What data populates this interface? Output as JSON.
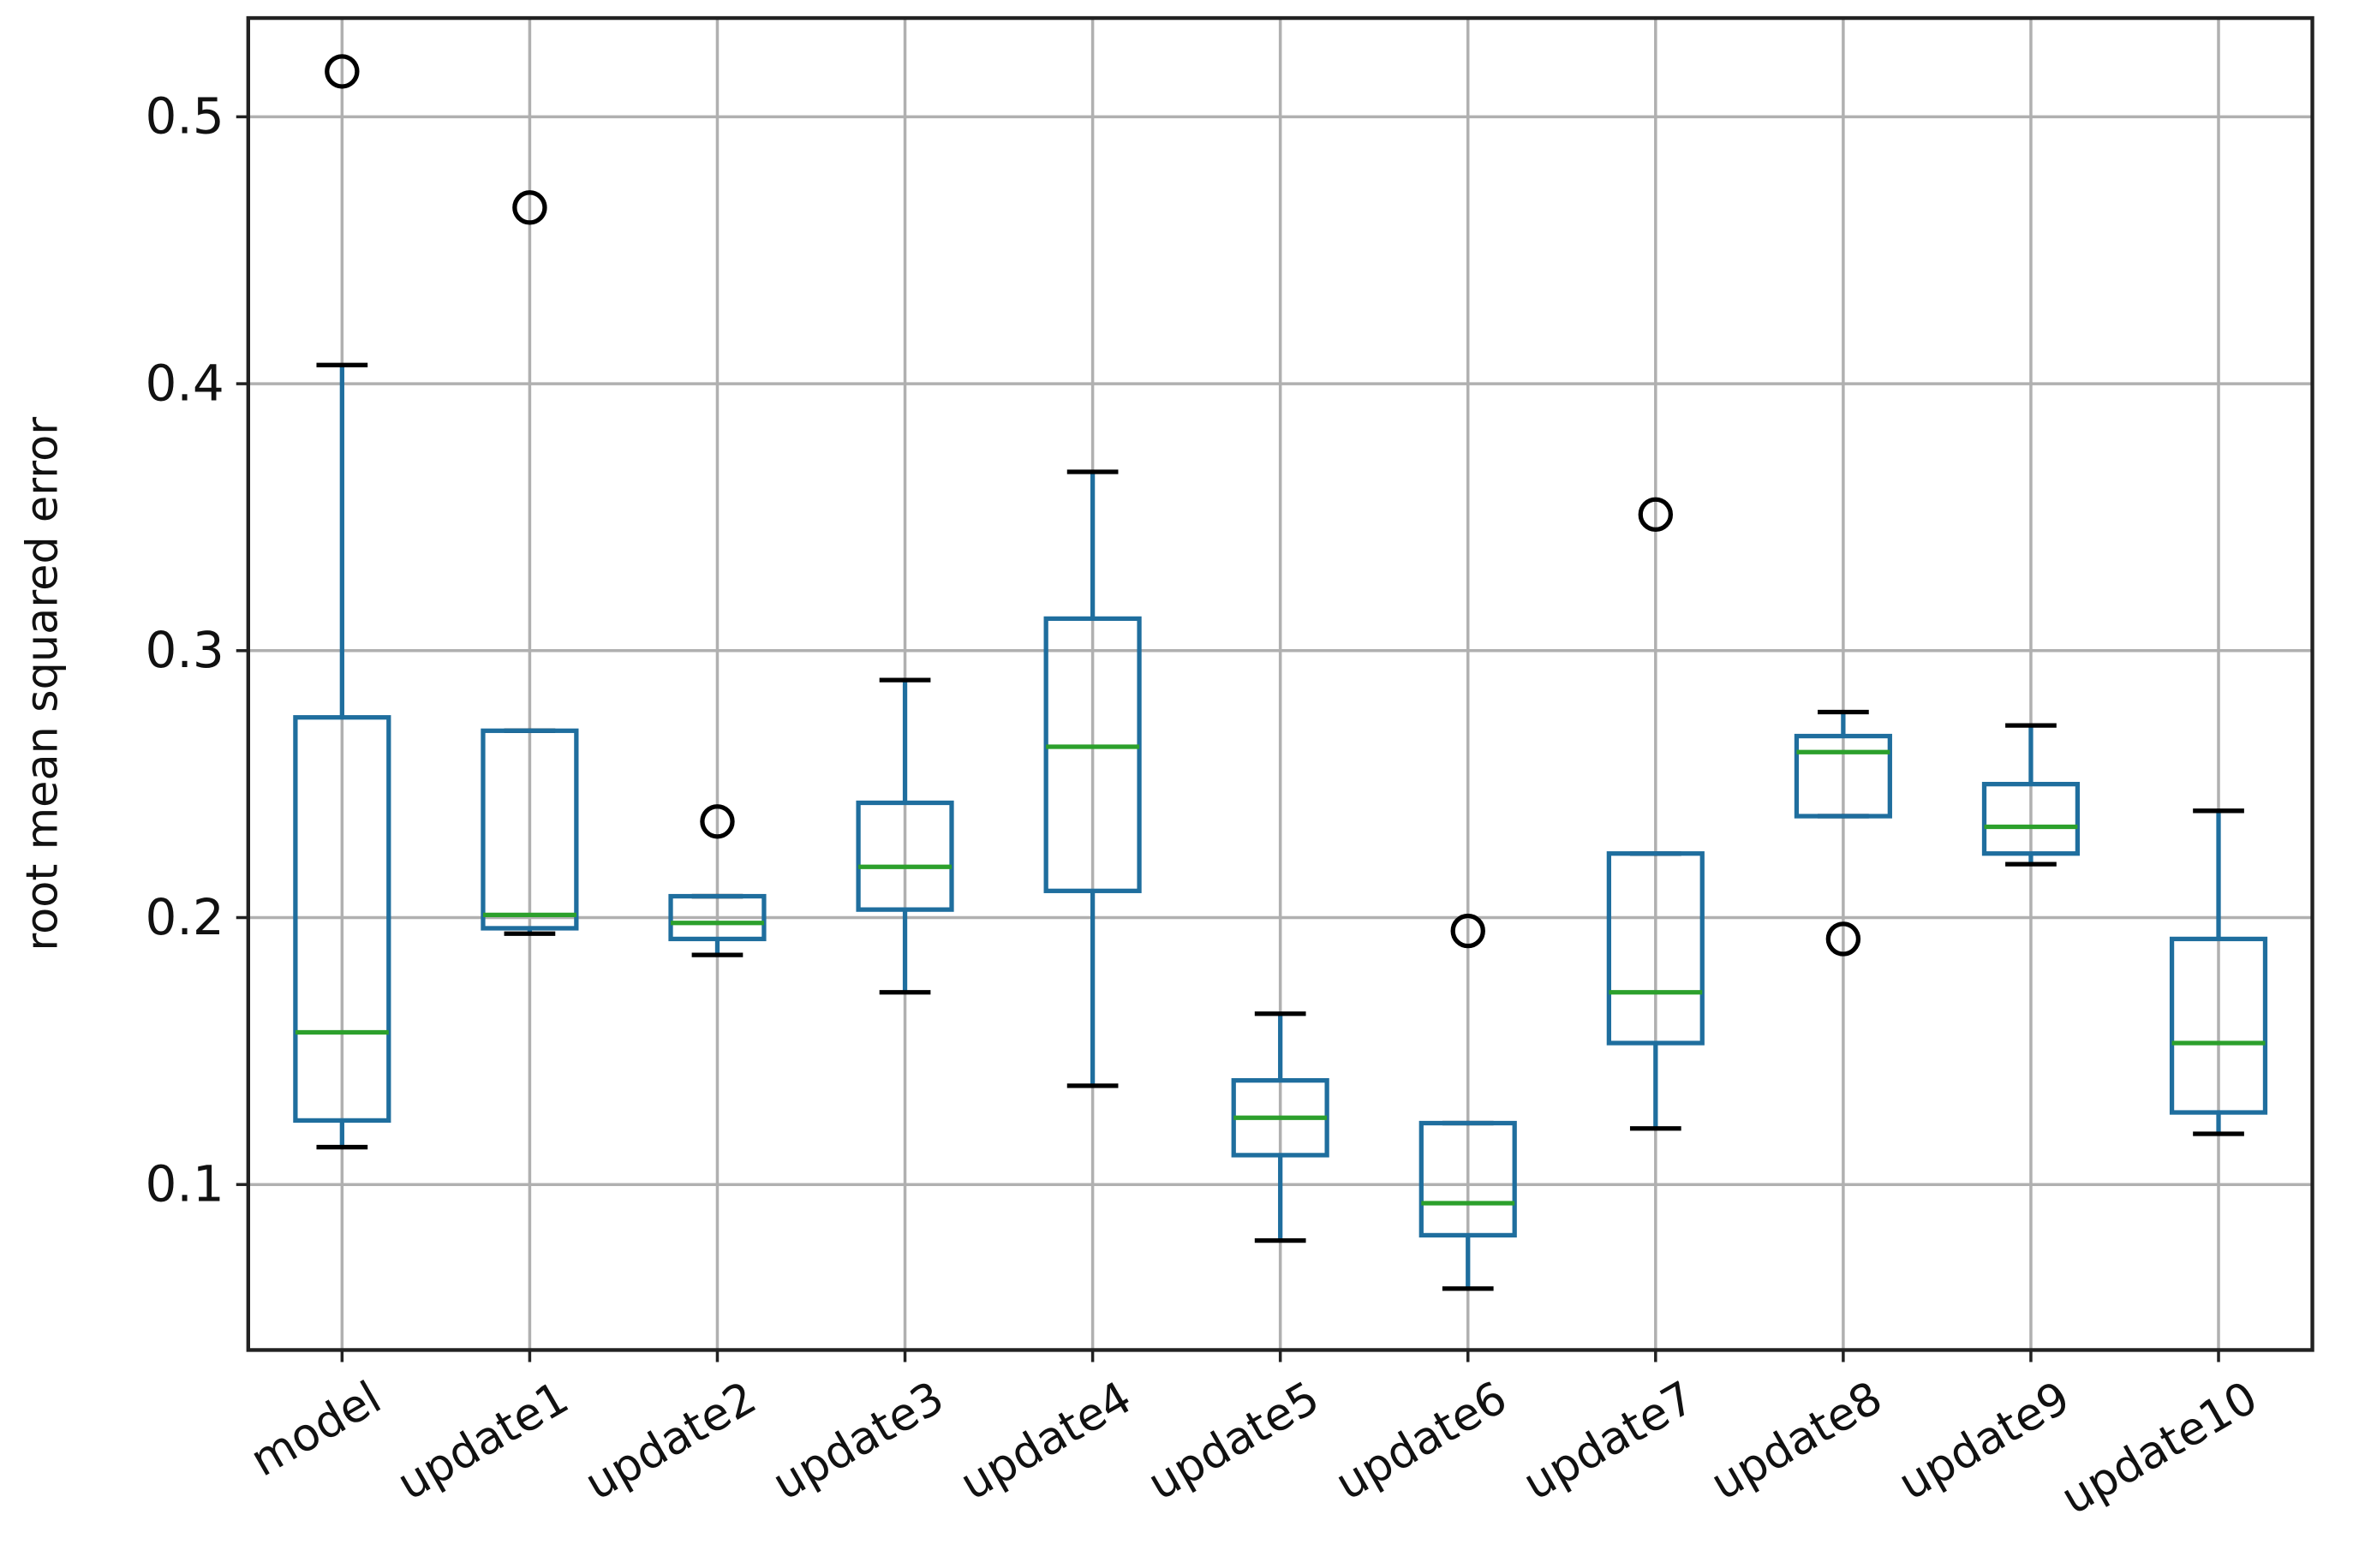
{
  "chart_data": {
    "type": "box",
    "title": "",
    "xlabel": "",
    "ylabel": "root mean squared error",
    "ylim": [
      0.038,
      0.537
    ],
    "yticks": [
      0.1,
      0.2,
      0.3,
      0.4,
      0.5
    ],
    "ytick_labels": [
      "0.1",
      "0.2",
      "0.3",
      "0.4",
      "0.5"
    ],
    "grid": true,
    "categories": [
      "model",
      "update1",
      "update2",
      "update3",
      "update4",
      "update5",
      "update6",
      "update7",
      "update8",
      "update9",
      "update10"
    ],
    "boxes": [
      {
        "whislo": 0.114,
        "q1": 0.124,
        "med": 0.157,
        "q3": 0.275,
        "whishi": 0.407,
        "fliers": [
          0.517
        ]
      },
      {
        "whislo": 0.194,
        "q1": 0.196,
        "med": 0.201,
        "q3": 0.27,
        "whishi": 0.27,
        "fliers": [
          0.466
        ]
      },
      {
        "whislo": 0.186,
        "q1": 0.192,
        "med": 0.198,
        "q3": 0.208,
        "whishi": 0.208,
        "fliers": [
          0.236
        ]
      },
      {
        "whislo": 0.172,
        "q1": 0.203,
        "med": 0.219,
        "q3": 0.243,
        "whishi": 0.289,
        "fliers": []
      },
      {
        "whislo": 0.137,
        "q1": 0.21,
        "med": 0.264,
        "q3": 0.312,
        "whishi": 0.367,
        "fliers": []
      },
      {
        "whislo": 0.079,
        "q1": 0.111,
        "med": 0.125,
        "q3": 0.139,
        "whishi": 0.164,
        "fliers": []
      },
      {
        "whislo": 0.061,
        "q1": 0.081,
        "med": 0.093,
        "q3": 0.123,
        "whishi": 0.123,
        "fliers": [
          0.195
        ]
      },
      {
        "whislo": 0.121,
        "q1": 0.153,
        "med": 0.172,
        "q3": 0.224,
        "whishi": 0.224,
        "fliers": [
          0.351
        ]
      },
      {
        "whislo": 0.238,
        "q1": 0.238,
        "med": 0.262,
        "q3": 0.268,
        "whishi": 0.277,
        "fliers": [
          0.192
        ]
      },
      {
        "whislo": 0.22,
        "q1": 0.224,
        "med": 0.234,
        "q3": 0.25,
        "whishi": 0.272,
        "fliers": []
      },
      {
        "whislo": 0.119,
        "q1": 0.127,
        "med": 0.153,
        "q3": 0.192,
        "whishi": 0.24,
        "fliers": []
      }
    ],
    "colors": {
      "box": "#1f6e9e",
      "median": "#2ca02c",
      "cap": "#000000",
      "grid": "#b0b0b0"
    }
  }
}
